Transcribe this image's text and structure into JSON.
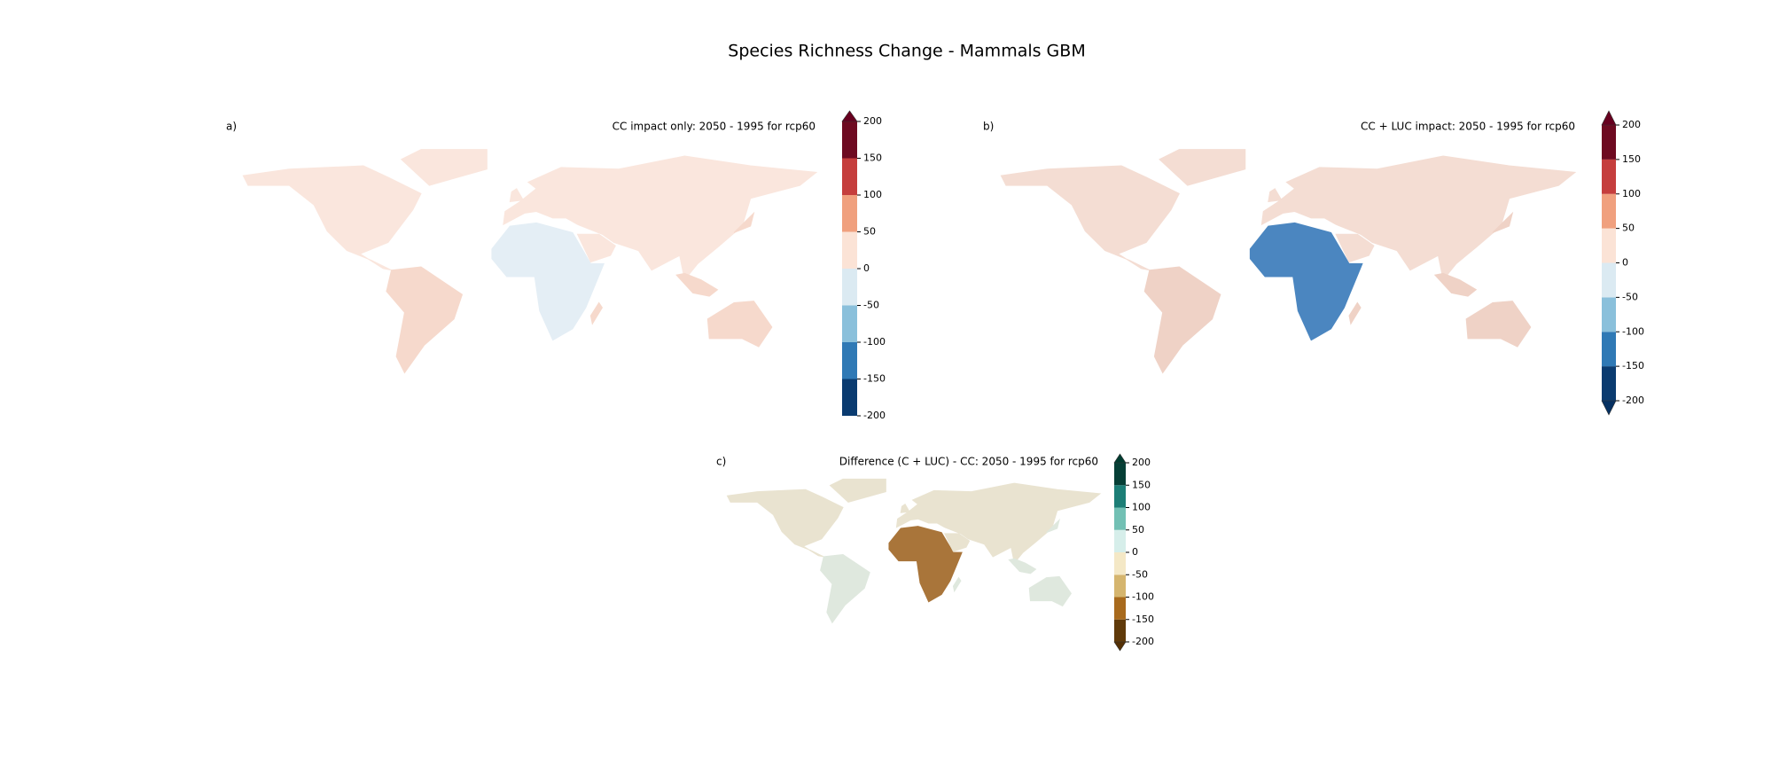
{
  "title": "Species Richness Change - Mammals GBM",
  "panels": [
    {
      "label": "a)",
      "title": "CC impact only: 2050 - 1995 for rcp60",
      "land": [
        "#fae6dd",
        "#e4eef5",
        "#f6d9cc"
      ],
      "colorbar": {
        "lim": [
          -200,
          200
        ],
        "ticks": [
          -200,
          -150,
          -100,
          -50,
          0,
          50,
          100,
          150,
          200
        ],
        "extend": "max",
        "colors": [
          "#0a3b70",
          "#2f79b5",
          "#8ac0db",
          "#dbeaf2",
          "#fbe3d6",
          "#f0a07e",
          "#c53e3d",
          "#6e0a21"
        ],
        "under": "#053061",
        "over": "#67001f"
      }
    },
    {
      "label": "b)",
      "title": "CC + LUC impact: 2050 - 1995 for rcp60",
      "land": [
        "#f4ddd3",
        "#4b86c0",
        "#efd2c6"
      ],
      "colorbar": {
        "lim": [
          -200,
          200
        ],
        "ticks": [
          -200,
          -150,
          -100,
          -50,
          0,
          50,
          100,
          150,
          200
        ],
        "extend": "both",
        "colors": [
          "#0a3b70",
          "#2f79b5",
          "#8ac0db",
          "#dbeaf2",
          "#fbe3d6",
          "#f0a07e",
          "#c53e3d",
          "#6e0a21"
        ],
        "under": "#053061",
        "over": "#67001f"
      }
    },
    {
      "label": "c)",
      "title": "Difference (C + LUC) - CC: 2050 - 1995 for rcp60",
      "land": [
        "#e9e3d0",
        "#a9753a",
        "#dfe8de"
      ],
      "colorbar": {
        "lim": [
          -200,
          200
        ],
        "ticks": [
          -200,
          -150,
          -100,
          -50,
          0,
          50,
          100,
          150,
          200
        ],
        "extend": "both",
        "colors": [
          "#603a0a",
          "#a86a1d",
          "#d5b56e",
          "#f4e8c6",
          "#d6eeea",
          "#72c0b4",
          "#1c7e76",
          "#063f36"
        ],
        "under": "#543005",
        "over": "#003c30"
      }
    }
  ]
}
